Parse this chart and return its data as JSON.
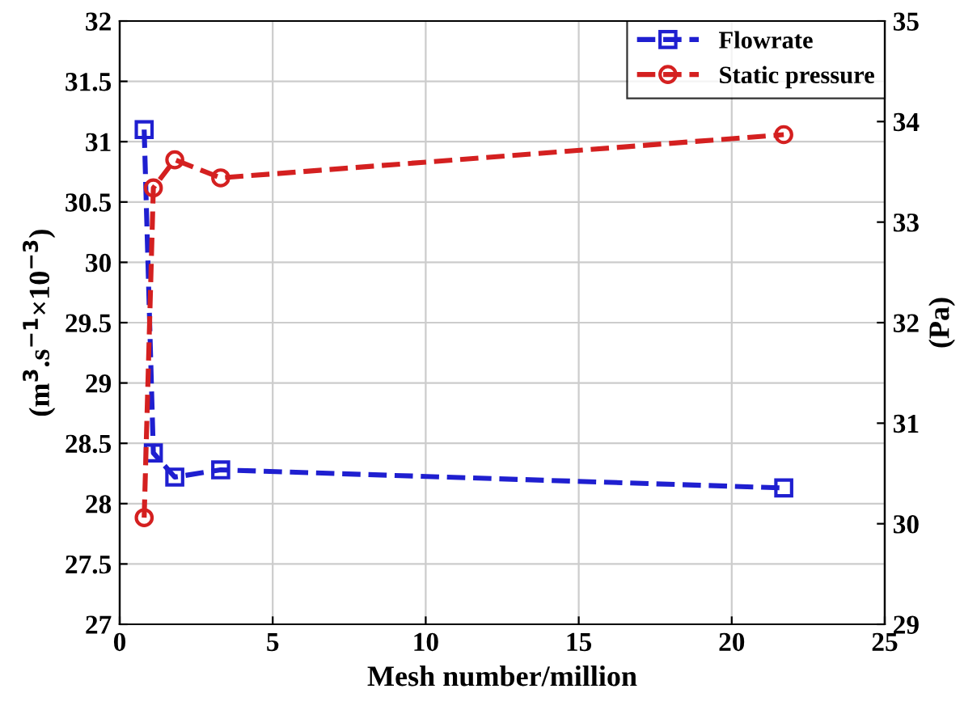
{
  "chart_data": {
    "type": "line",
    "xlabel": "Mesh number/million",
    "ylabel": "(m$^{3}$.s$^{−1}$×10$^{−3}$)",
    "y2label": "(Pa)",
    "xlim": [
      0,
      25
    ],
    "xticks": [
      0,
      5,
      10,
      15,
      20,
      25
    ],
    "ylim": [
      27,
      32
    ],
    "yticks": [
      27,
      27.5,
      28,
      28.5,
      29,
      29.5,
      30,
      30.5,
      31,
      31.5,
      32
    ],
    "y2lim": [
      29,
      35
    ],
    "y2ticks": [
      29,
      30,
      31,
      32,
      33,
      34,
      35
    ],
    "grid": true,
    "legend": "top right",
    "line_style": "dashed",
    "series": [
      {
        "name": "Flowrate",
        "color": "#1f1fd0",
        "marker": "square",
        "x": [
          0.8,
          1.1,
          1.8,
          3.3,
          21.7
        ],
        "values": [
          31.1,
          28.42,
          28.22,
          28.28,
          28.13
        ]
      },
      {
        "name": "Static pressure",
        "color": "#d42020",
        "marker": "circle",
        "axis": "y2",
        "x": [
          0.8,
          1.1,
          1.8,
          3.3,
          21.7
        ],
        "values": [
          30.06,
          33.34,
          33.62,
          33.44,
          33.87
        ]
      }
    ]
  }
}
